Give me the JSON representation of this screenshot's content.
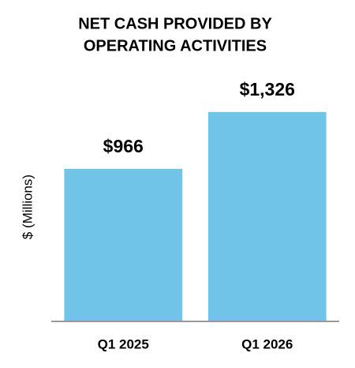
{
  "chart_data": {
    "type": "bar",
    "title": [
      "NET CASH PROVIDED BY",
      "OPERATING ACTIVITIES"
    ],
    "y_label": "$ (Millions)",
    "categories": [
      "Q1 2025",
      "Q1 2026"
    ],
    "values": [
      966,
      1326
    ],
    "value_labels": [
      "$966",
      "$1,326"
    ],
    "color": "#70c4e8",
    "ylim": [
      0,
      1500
    ]
  }
}
